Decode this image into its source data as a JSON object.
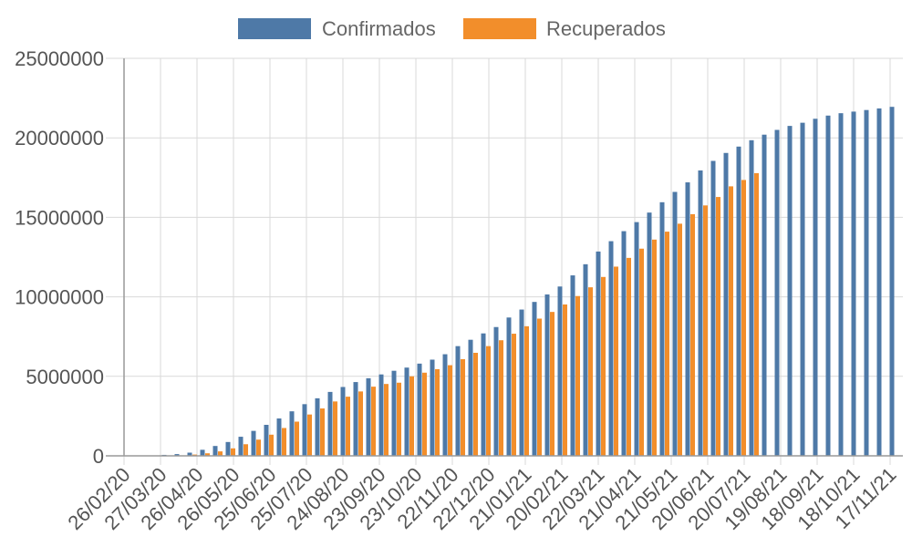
{
  "chart_data": {
    "type": "bar",
    "legend": {
      "position": "top"
    },
    "series": [
      {
        "name": "Confirmados",
        "color": "#4e79a7",
        "values": [
          0,
          5000,
          20000,
          60000,
          110000,
          200000,
          380000,
          620000,
          870000,
          1200000,
          1570000,
          1950000,
          2350000,
          2800000,
          3250000,
          3620000,
          4020000,
          4330000,
          4640000,
          4880000,
          5120000,
          5350000,
          5550000,
          5800000,
          6050000,
          6390000,
          6900000,
          7300000,
          7700000,
          8100000,
          8700000,
          9200000,
          9680000,
          10150000,
          10650000,
          11350000,
          12050000,
          12850000,
          13500000,
          14130000,
          14700000,
          15300000,
          15950000,
          16600000,
          17200000,
          17950000,
          18550000,
          19050000,
          19450000,
          19850000,
          20200000,
          20500000,
          20750000,
          20950000,
          21200000,
          21400000,
          21550000,
          21650000,
          21750000,
          21850000,
          21950000
        ]
      },
      {
        "name": "Recuperados",
        "color": "#f28e2b",
        "values": [
          0,
          0,
          0,
          0,
          30000,
          80000,
          160000,
          280000,
          470000,
          730000,
          1020000,
          1330000,
          1750000,
          2150000,
          2600000,
          2980000,
          3420000,
          3720000,
          4050000,
          4350000,
          4520000,
          4600000,
          5000000,
          5230000,
          5450000,
          5700000,
          6080000,
          6480000,
          6900000,
          7270000,
          7680000,
          8150000,
          8630000,
          9050000,
          9520000,
          10050000,
          10600000,
          11250000,
          11900000,
          12450000,
          13030000,
          13600000,
          14100000,
          14600000,
          15200000,
          15750000,
          16280000,
          16950000,
          17350000,
          17780000,
          null,
          null,
          null,
          null,
          null,
          null,
          null,
          null,
          null,
          null,
          null
        ]
      }
    ],
    "x_tick_labels": [
      "26/02/20",
      "27/03/20",
      "26/04/20",
      "26/05/20",
      "25/06/20",
      "25/07/20",
      "24/08/20",
      "23/09/20",
      "23/10/20",
      "22/11/20",
      "22/12/20",
      "21/01/21",
      "20/02/21",
      "22/03/21",
      "21/04/21",
      "21/05/21",
      "20/06/21",
      "20/07/21",
      "19/08/21",
      "18/09/21",
      "18/10/21",
      "17/11/21"
    ],
    "y_ticks": [
      0,
      5000000,
      10000000,
      15000000,
      20000000,
      25000000
    ],
    "ylim": [
      0,
      25000000
    ],
    "grid": true
  }
}
